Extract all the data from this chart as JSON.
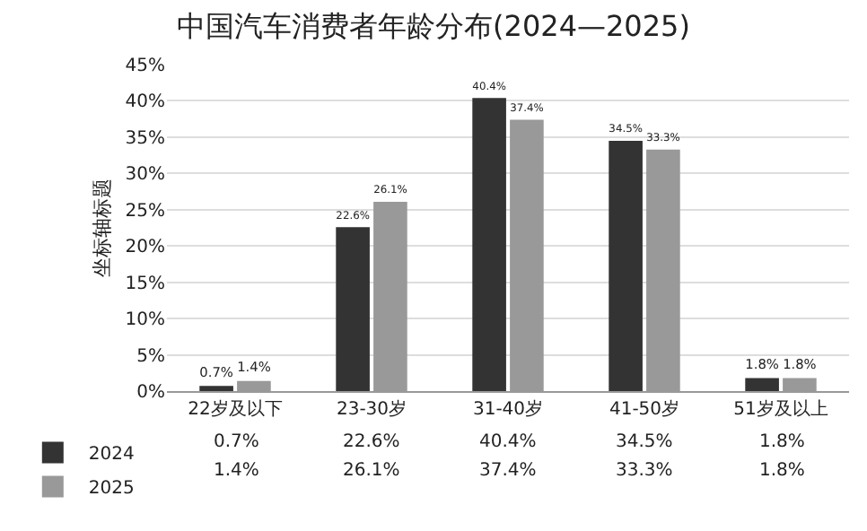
{
  "chart_data": {
    "type": "bar",
    "title": "中国汽车消费者年龄分布(2024—2025)",
    "ylabel": "坐标轴标题",
    "categories": [
      "22岁及以下",
      "23-30岁",
      "31-40岁",
      "41-50岁",
      "51岁及以上"
    ],
    "series": [
      {
        "name": "2024",
        "color": "#333333",
        "values": [
          0.7,
          22.6,
          40.4,
          34.5,
          1.8
        ],
        "value_labels": [
          "0.7%",
          "22.6%",
          "40.4%",
          "34.5%",
          "1.8%"
        ]
      },
      {
        "name": "2025",
        "color": "#999999",
        "values": [
          1.4,
          26.1,
          37.4,
          33.3,
          1.8
        ],
        "value_labels": [
          "1.4%",
          "26.1%",
          "37.4%",
          "33.3%",
          "1.8%"
        ]
      }
    ],
    "ylim": [
      0,
      45
    ],
    "yticks": [
      {
        "value": 0,
        "label": "0%"
      },
      {
        "value": 5,
        "label": "5%"
      },
      {
        "value": 10,
        "label": "10%"
      },
      {
        "value": 15,
        "label": "15%"
      },
      {
        "value": 20,
        "label": "20%"
      },
      {
        "value": 25,
        "label": "25%"
      },
      {
        "value": 30,
        "label": "30%"
      },
      {
        "value": 35,
        "label": "35%"
      },
      {
        "value": 40,
        "label": "40%"
      },
      {
        "value": 45,
        "label": "45%"
      }
    ],
    "grid": "y",
    "legend": "bottom left"
  }
}
